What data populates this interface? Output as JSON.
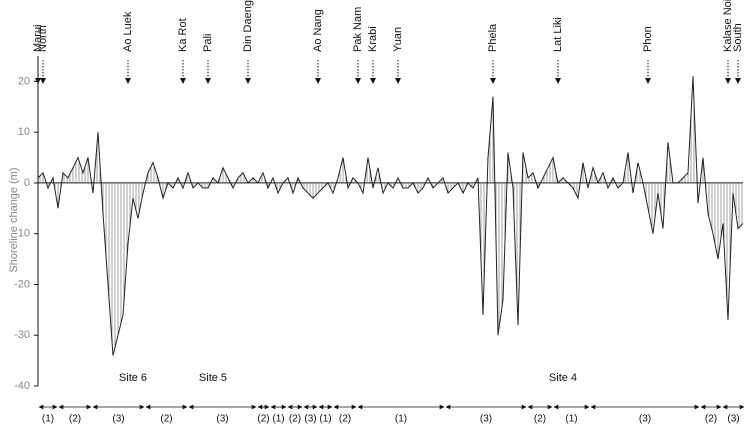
{
  "chart_data": {
    "type": "area",
    "y_label": "Shoreline change (m)",
    "color": "#222222",
    "fill": "#bbbbbb",
    "ylim": [
      -40,
      25
    ],
    "yticks": [
      -40,
      -30,
      -20,
      -10,
      0,
      10,
      20
    ],
    "categories": [
      "Marui",
      "North",
      null,
      null,
      null,
      null,
      null,
      null,
      null,
      null,
      null,
      null,
      null,
      null,
      null,
      null,
      null,
      null,
      "Ao Luek",
      null,
      null,
      null,
      null,
      null,
      null,
      null,
      null,
      null,
      null,
      "Ka Rot",
      null,
      null,
      null,
      null,
      "Pali",
      null,
      null,
      null,
      null,
      null,
      null,
      null,
      "Din Daeng",
      null,
      null,
      null,
      null,
      null,
      null,
      null,
      null,
      null,
      null,
      null,
      null,
      null,
      "Ao Nang",
      null,
      null,
      null,
      null,
      null,
      null,
      null,
      "Pak Nam",
      null,
      null,
      "Krabi",
      null,
      null,
      null,
      null,
      "Yuan",
      null,
      null,
      null,
      null,
      null,
      null,
      null,
      null,
      null,
      null,
      null,
      null,
      null,
      null,
      null,
      null,
      null,
      null,
      "Phela",
      null,
      null,
      null,
      null,
      null,
      null,
      null,
      null,
      null,
      null,
      null,
      null,
      "Lat Liki",
      null,
      null,
      null,
      null,
      null,
      null,
      null,
      null,
      null,
      null,
      null,
      null,
      null,
      null,
      null,
      null,
      null,
      "Phon",
      null,
      null,
      null,
      null,
      null,
      null,
      null,
      null,
      null,
      null,
      null,
      null,
      null,
      null,
      null,
      "Kalase Noi",
      null,
      "South",
      null
    ],
    "values": [
      1,
      2,
      -1,
      1,
      -5,
      2,
      1,
      3,
      5,
      2,
      5,
      -2,
      10,
      -6,
      -20,
      -34,
      -30,
      -26,
      -12,
      -3,
      -7,
      -2,
      2,
      4,
      1,
      -3,
      0,
      -1,
      1,
      -1,
      2,
      -1,
      0,
      -1,
      -1,
      1,
      0,
      3,
      1,
      -1,
      1,
      2,
      0,
      1,
      0,
      2,
      -1,
      1,
      -2,
      0,
      1,
      -2,
      1,
      -1,
      -2,
      -3,
      -2,
      -1,
      0,
      -2,
      1,
      5,
      -1,
      1,
      0,
      -2,
      5,
      -1,
      3,
      -2,
      0,
      -1,
      1,
      -1,
      -1,
      0,
      -2,
      -1,
      1,
      -1,
      0,
      1,
      -2,
      -1,
      0,
      -2,
      0,
      -1,
      1,
      -26,
      5,
      17,
      -30,
      -23,
      6,
      -1,
      -28,
      6,
      1,
      2,
      -1,
      1,
      3,
      5,
      0,
      1,
      0,
      -1,
      -3,
      4,
      -1,
      3,
      0,
      2,
      -1,
      1,
      -1,
      0,
      6,
      -2,
      4,
      0,
      -5,
      -10,
      -2,
      -9,
      8,
      0,
      0,
      1,
      2,
      21,
      -4,
      5,
      -6,
      -10,
      -15,
      -8,
      -27,
      -2,
      -9,
      -8
    ],
    "segments": [
      {
        "label": "(1)",
        "from": 0,
        "to": 4
      },
      {
        "label": "(2)",
        "from": 4,
        "to": 10.8
      },
      {
        "label": "(3)",
        "from": 10.8,
        "to": 21.4
      },
      {
        "label": "(2)",
        "from": 21.4,
        "to": 30
      },
      {
        "label": "(3)",
        "from": 30,
        "to": 43.8
      },
      {
        "label": "(2)",
        "from": 43.8,
        "to": 46.4
      },
      {
        "label": "(1)",
        "from": 46.4,
        "to": 49.8
      },
      {
        "label": "(2)",
        "from": 49.8,
        "to": 53
      },
      {
        "label": "(3)",
        "from": 53,
        "to": 56
      },
      {
        "label": "(1)",
        "from": 56,
        "to": 59
      },
      {
        "label": "(2)",
        "from": 59,
        "to": 63.8
      },
      {
        "label": "(1)",
        "from": 63.8,
        "to": 81.4
      },
      {
        "label": "(3)",
        "from": 81.4,
        "to": 97.8
      },
      {
        "label": "(2)",
        "from": 97.8,
        "to": 103
      },
      {
        "label": "(1)",
        "from": 103,
        "to": 110.4
      },
      {
        "label": "(3)",
        "from": 110.4,
        "to": 132.4
      },
      {
        "label": "(2)",
        "from": 132.4,
        "to": 136.8
      },
      {
        "label": "(3)",
        "from": 136.8,
        "to": 141.4
      }
    ],
    "sites": [
      {
        "label": "Site 6",
        "at": 19
      },
      {
        "label": "Site 5",
        "at": 35
      },
      {
        "label": "Site 4",
        "at": 105
      }
    ]
  }
}
